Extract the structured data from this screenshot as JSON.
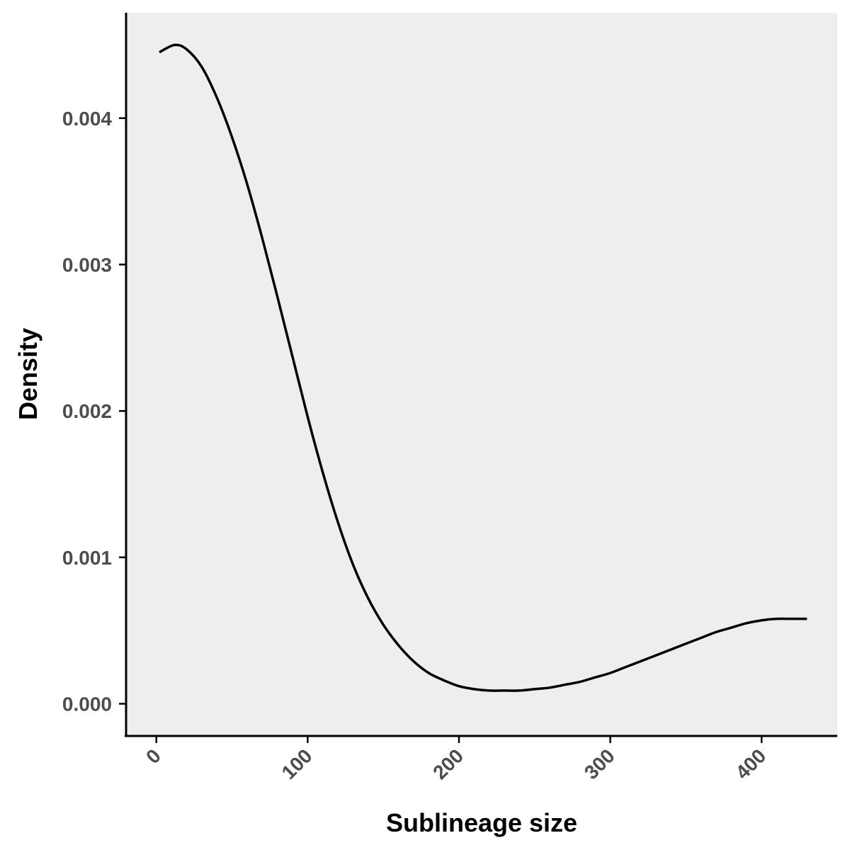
{
  "chart_data": {
    "type": "line",
    "title": "",
    "xlabel": "Sublineage size",
    "ylabel": "Density",
    "xlim": [
      -20,
      450
    ],
    "ylim": [
      -0.00022,
      0.00472
    ],
    "x_ticks": [
      0,
      100,
      200,
      300,
      400
    ],
    "x_tick_labels": [
      "0",
      "100",
      "200",
      "300",
      "400"
    ],
    "y_ticks": [
      0,
      0.001,
      0.002,
      0.003,
      0.004
    ],
    "y_tick_labels": [
      "0.000",
      "0.001",
      "0.002",
      "0.003",
      "0.004"
    ],
    "grid": false,
    "legend": "none",
    "panel_background": "#eeeeee",
    "line_color": "#000000",
    "series": [
      {
        "x": [
          2,
          12,
          20,
          30,
          40,
          50,
          60,
          70,
          80,
          90,
          100,
          110,
          120,
          130,
          140,
          150,
          160,
          170,
          180,
          190,
          200,
          210,
          220,
          230,
          240,
          250,
          260,
          270,
          280,
          290,
          300,
          310,
          320,
          330,
          340,
          350,
          360,
          370,
          380,
          390,
          400,
          410,
          420,
          430
        ],
        "y": [
          0.00445,
          0.0045,
          0.00447,
          0.00435,
          0.00414,
          0.00387,
          0.00355,
          0.00318,
          0.00278,
          0.00237,
          0.00196,
          0.00158,
          0.00124,
          0.00095,
          0.00072,
          0.00054,
          0.0004,
          0.00029,
          0.00021,
          0.00016,
          0.00012,
          0.0001,
          9e-05,
          9e-05,
          9e-05,
          0.0001,
          0.00011,
          0.00013,
          0.00015,
          0.00018,
          0.00021,
          0.00025,
          0.00029,
          0.00033,
          0.00037,
          0.00041,
          0.00045,
          0.00049,
          0.00052,
          0.00055,
          0.00057,
          0.00058,
          0.00058,
          0.00058
        ]
      }
    ]
  }
}
